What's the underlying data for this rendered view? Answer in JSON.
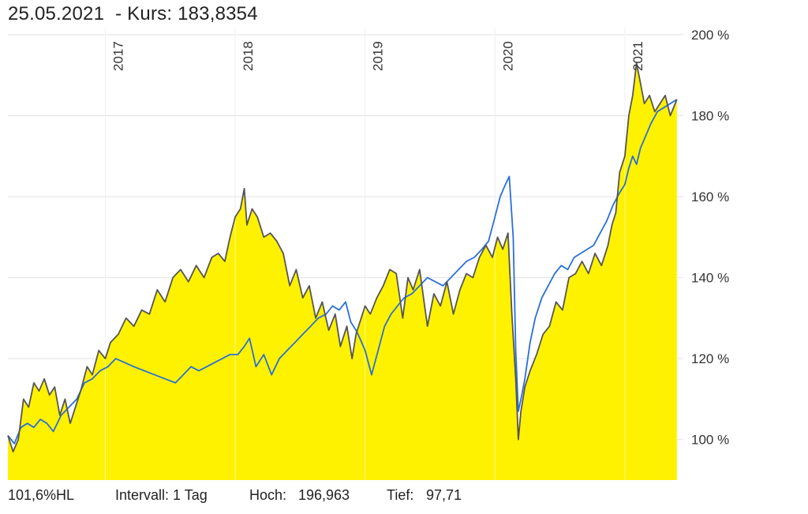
{
  "header": {
    "date": "25.05.2021",
    "kurs_prefix": "- Kurs:",
    "kurs_value": "183,8354"
  },
  "footer": {
    "range": "101,6%HL",
    "interval": "Intervall: 1 Tag",
    "hoch_label": "Hoch:",
    "hoch_value": "196,963",
    "tief_label": "Tief:",
    "tief_value": "97,71"
  },
  "colors": {
    "fill": "#fff200",
    "primary_line": "#555555",
    "benchmark_line": "#2a6fd6",
    "grid": "#e2e2e2"
  },
  "chart_data": {
    "type": "area",
    "ylim": [
      90,
      200
    ],
    "xlim": [
      2016.25,
      2021.45
    ],
    "y_ticks": [
      {
        "value": 100,
        "label": "100 %"
      },
      {
        "value": 120,
        "label": "120 %"
      },
      {
        "value": 140,
        "label": "140 %"
      },
      {
        "value": 160,
        "label": "160 %"
      },
      {
        "value": 180,
        "label": "180 %"
      },
      {
        "value": 200,
        "label": "200 %"
      }
    ],
    "x_ticks": [
      {
        "value": 2017,
        "label": "2017"
      },
      {
        "value": 2018,
        "label": "2018"
      },
      {
        "value": 2019,
        "label": "2019"
      },
      {
        "value": 2020,
        "label": "2020"
      },
      {
        "value": 2021,
        "label": "2021"
      }
    ],
    "grid": true,
    "series": [
      {
        "key": "primary",
        "x": [
          2016.25,
          2016.29,
          2016.33,
          2016.37,
          2016.41,
          2016.45,
          2016.49,
          2016.53,
          2016.57,
          2016.61,
          2016.65,
          2016.69,
          2016.73,
          2016.77,
          2016.81,
          2016.86,
          2016.9,
          2016.95,
          2017.0,
          2017.04,
          2017.1,
          2017.16,
          2017.22,
          2017.28,
          2017.34,
          2017.4,
          2017.46,
          2017.52,
          2017.58,
          2017.64,
          2017.7,
          2017.76,
          2017.82,
          2017.87,
          2017.92,
          2017.96,
          2018.0,
          2018.04,
          2018.07,
          2018.09,
          2018.13,
          2018.17,
          2018.22,
          2018.27,
          2018.32,
          2018.37,
          2018.42,
          2018.47,
          2018.52,
          2018.57,
          2018.62,
          2018.67,
          2018.72,
          2018.77,
          2018.81,
          2018.86,
          2018.9,
          2018.93,
          2018.96,
          2019.0,
          2019.04,
          2019.09,
          2019.14,
          2019.19,
          2019.24,
          2019.29,
          2019.33,
          2019.37,
          2019.42,
          2019.48,
          2019.53,
          2019.58,
          2019.63,
          2019.68,
          2019.73,
          2019.78,
          2019.83,
          2019.88,
          2019.93,
          2019.98,
          2020.02,
          2020.06,
          2020.1,
          2020.13,
          2020.16,
          2020.18,
          2020.2,
          2020.23,
          2020.27,
          2020.32,
          2020.37,
          2020.42,
          2020.47,
          2020.52,
          2020.57,
          2020.62,
          2020.67,
          2020.72,
          2020.77,
          2020.82,
          2020.87,
          2020.9,
          2020.93,
          2020.96,
          2021.0,
          2021.03,
          2021.06,
          2021.09,
          2021.12,
          2021.15,
          2021.19,
          2021.23,
          2021.27,
          2021.31,
          2021.35,
          2021.4
        ],
        "y": [
          101,
          97,
          100,
          110,
          108,
          114,
          112,
          115,
          111,
          113,
          106,
          110,
          104,
          108,
          112,
          118,
          116,
          122,
          120,
          124,
          126,
          130,
          128,
          132,
          131,
          137,
          134,
          140,
          142,
          139,
          143,
          140,
          145,
          146,
          144,
          150,
          155,
          157,
          162,
          153,
          157,
          155,
          150,
          151,
          149,
          146,
          138,
          142,
          135,
          138,
          130,
          134,
          127,
          131,
          123,
          128,
          120,
          126,
          129,
          133,
          131,
          135,
          138,
          142,
          141,
          130,
          140,
          137,
          142,
          128,
          136,
          133,
          139,
          131,
          137,
          141,
          140,
          145,
          148,
          145,
          150,
          147,
          151,
          131,
          115,
          100,
          107,
          113,
          117,
          121,
          126,
          128,
          134,
          132,
          140,
          141,
          144,
          141,
          146,
          143,
          148,
          153,
          156,
          166,
          170,
          180,
          185,
          193,
          188,
          183,
          185,
          181,
          183,
          185,
          180,
          184
        ]
      },
      {
        "key": "benchmark",
        "x": [
          2016.25,
          2016.3,
          2016.35,
          2016.4,
          2016.45,
          2016.5,
          2016.55,
          2016.6,
          2016.66,
          2016.72,
          2016.78,
          2016.84,
          2016.9,
          2016.96,
          2017.02,
          2017.08,
          2017.15,
          2017.22,
          2017.3,
          2017.38,
          2017.46,
          2017.54,
          2017.6,
          2017.66,
          2017.72,
          2017.78,
          2017.84,
          2017.9,
          2017.96,
          2018.02,
          2018.07,
          2018.11,
          2018.16,
          2018.22,
          2018.28,
          2018.34,
          2018.4,
          2018.46,
          2018.52,
          2018.58,
          2018.64,
          2018.7,
          2018.75,
          2018.8,
          2018.85,
          2018.89,
          2018.93,
          2018.96,
          2019.0,
          2019.05,
          2019.1,
          2019.15,
          2019.2,
          2019.25,
          2019.3,
          2019.36,
          2019.42,
          2019.48,
          2019.54,
          2019.6,
          2019.66,
          2019.72,
          2019.78,
          2019.84,
          2019.9,
          2019.95,
          2020.0,
          2020.04,
          2020.08,
          2020.11,
          2020.14,
          2020.16,
          2020.18,
          2020.2,
          2020.23,
          2020.27,
          2020.31,
          2020.36,
          2020.41,
          2020.46,
          2020.51,
          2020.56,
          2020.61,
          2020.66,
          2020.71,
          2020.76,
          2020.81,
          2020.86,
          2020.91,
          2020.96,
          2021.0,
          2021.03,
          2021.06,
          2021.09,
          2021.12,
          2021.16,
          2021.2,
          2021.25,
          2021.3,
          2021.35,
          2021.4
        ],
        "y": [
          101,
          99,
          103,
          104,
          103,
          105,
          104,
          102,
          106,
          108,
          110,
          114,
          115,
          117,
          118,
          120,
          119,
          118,
          117,
          116,
          115,
          114,
          116,
          118,
          117,
          118,
          119,
          120,
          121,
          121,
          123,
          125,
          118,
          121,
          116,
          120,
          122,
          124,
          126,
          128,
          130,
          131,
          133,
          132,
          134,
          129,
          127,
          125,
          122,
          116,
          122,
          128,
          131,
          133,
          135,
          136,
          138,
          140,
          139,
          138,
          140,
          142,
          144,
          145,
          147,
          149,
          155,
          160,
          163,
          165,
          150,
          122,
          107,
          110,
          115,
          124,
          130,
          135,
          138,
          141,
          143,
          142,
          145,
          146,
          147,
          148,
          151,
          154,
          158,
          161,
          163,
          167,
          170,
          168,
          172,
          175,
          178,
          181,
          182,
          183,
          184
        ]
      }
    ]
  }
}
